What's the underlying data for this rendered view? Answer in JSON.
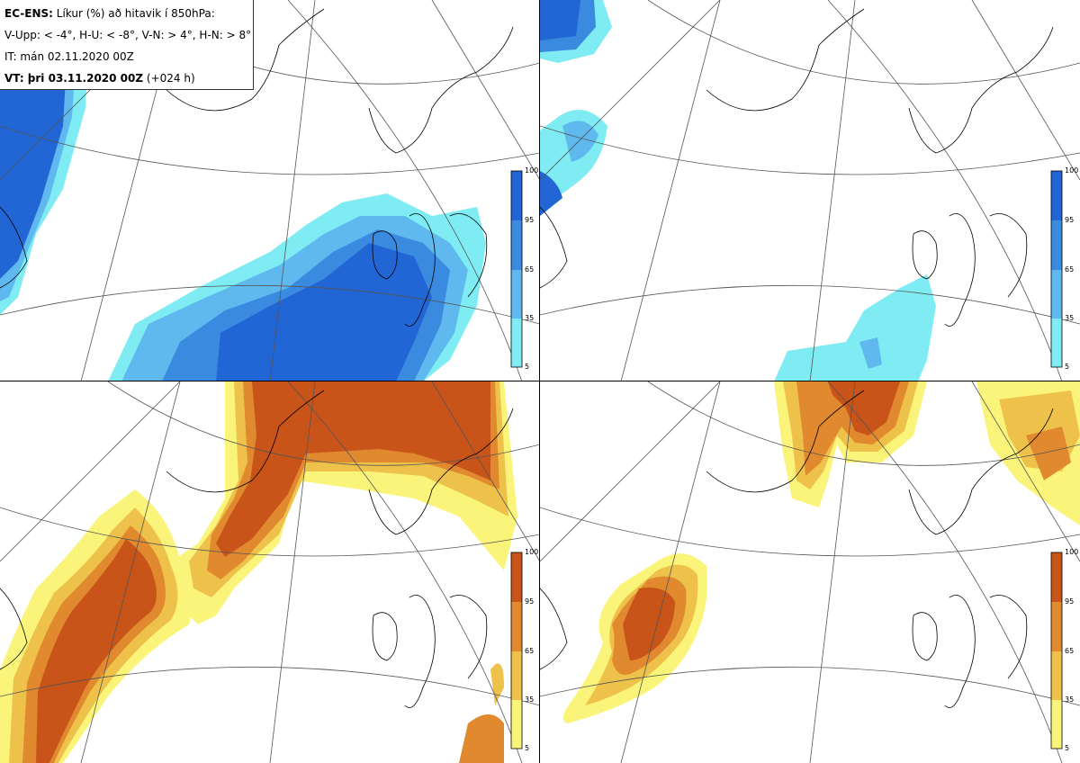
{
  "header": {
    "model": "EC-ENS:",
    "title_rest": " Líkur (%) að hitavik í 850hPa:",
    "legend_line": "V-Upp: < -4°, H-U: < -8°, V-N: > 4°, H-N: > 8°",
    "init_time": "IT: mán 02.11.2020 00Z",
    "valid_label": "VT: þri 03.11.2020 00Z",
    "lead": " (+024 h)"
  },
  "panels": [
    {
      "id": "upper-left",
      "variable": "V-Upp",
      "colorscale": "blues"
    },
    {
      "id": "upper-right",
      "variable": "H-U",
      "colorscale": "blues"
    },
    {
      "id": "lower-left",
      "variable": "V-N",
      "colorscale": "oranges"
    },
    {
      "id": "lower-right",
      "variable": "H-N",
      "colorscale": "oranges"
    }
  ],
  "colorbar": {
    "ticks": [
      "100",
      "95",
      "65",
      "35",
      "5"
    ],
    "blue_colors": [
      "#2166d4",
      "#3a8ae0",
      "#5fb8ee",
      "#7eecf2"
    ],
    "orange_colors": [
      "#c8541a",
      "#e0892e",
      "#eec24a",
      "#faf57a"
    ]
  }
}
